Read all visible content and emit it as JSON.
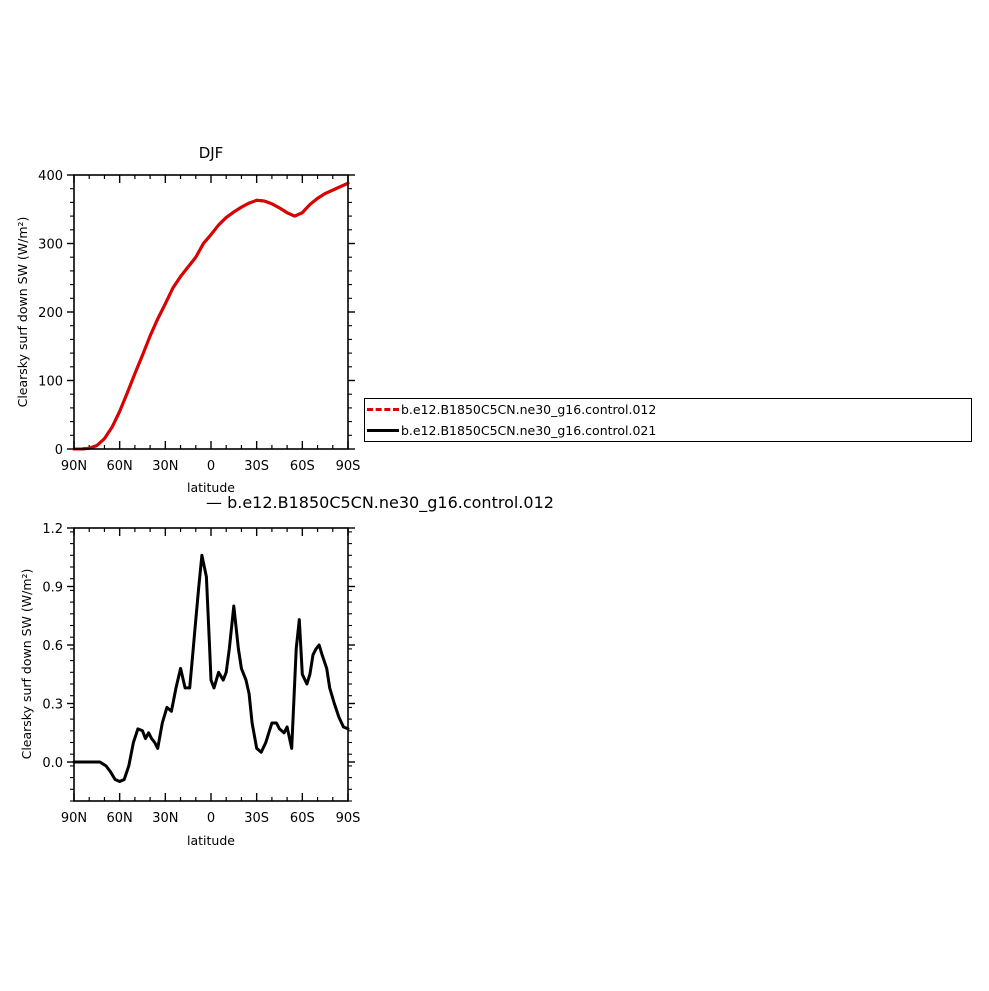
{
  "colors": {
    "control012": "#e00000",
    "control021": "#000000",
    "axes": "#000000"
  },
  "legend": {
    "items": [
      {
        "label": "b.e12.B1850C5CN.ne30_g16.control.012",
        "color": "#e00000",
        "style": "dashed"
      },
      {
        "label": "b.e12.B1850C5CN.ne30_g16.control.021",
        "color": "#000000",
        "style": "solid"
      }
    ]
  },
  "diff_caption": "— b.e12.B1850C5CN.ne30_g16.control.012",
  "chart_data": [
    {
      "type": "line",
      "title": "DJF",
      "xlabel": "latitude",
      "ylabel": "Clearsky surf down SW (W/m²)",
      "xlim": [
        90,
        -90
      ],
      "ylim": [
        0,
        400
      ],
      "xticks": [
        90,
        60,
        30,
        0,
        -30,
        -60,
        -90
      ],
      "xtick_labels": [
        "90N",
        "60N",
        "30N",
        "0",
        "30S",
        "60S",
        "90S"
      ],
      "yticks": [
        0,
        100,
        200,
        300,
        400
      ],
      "ytick_labels": [
        "0",
        "100",
        "200",
        "300",
        "400"
      ],
      "x": [
        90,
        85,
        80,
        75,
        70,
        65,
        60,
        55,
        50,
        45,
        40,
        35,
        30,
        25,
        20,
        15,
        10,
        5,
        0,
        -5,
        -10,
        -15,
        -20,
        -25,
        -30,
        -35,
        -40,
        -45,
        -50,
        -55,
        -60,
        -65,
        -70,
        -75,
        -80,
        -85,
        -90
      ],
      "series": [
        {
          "name": "b.e12.B1850C5CN.ne30_g16.control.012",
          "color": "#e00000",
          "style": "dashed",
          "values": [
            0,
            0,
            1,
            5,
            15,
            32,
            55,
            82,
            110,
            137,
            165,
            190,
            212,
            235,
            252,
            266,
            280,
            300,
            313,
            327,
            338,
            346,
            353,
            359,
            363,
            362,
            358,
            352,
            345,
            340,
            345,
            357,
            366,
            373,
            378,
            383,
            388
          ]
        },
        {
          "name": "b.e12.B1850C5CN.ne30_g16.control.021",
          "color": "#000000",
          "style": "solid",
          "values": [
            0,
            0,
            1,
            5,
            15,
            32,
            55,
            82,
            110,
            137,
            165,
            190,
            212,
            235,
            252,
            266,
            280,
            300,
            313,
            327,
            338,
            346,
            353,
            359,
            363,
            362,
            358,
            352,
            345,
            340,
            345,
            357,
            366,
            373,
            378,
            383,
            388
          ]
        }
      ]
    },
    {
      "type": "line",
      "title": "",
      "xlabel": "latitude",
      "ylabel": "Clearsky surf down SW (W/m²)",
      "xlim": [
        90,
        -90
      ],
      "ylim": [
        -0.2,
        1.2
      ],
      "xticks": [
        90,
        60,
        30,
        0,
        -30,
        -60,
        -90
      ],
      "xtick_labels": [
        "90N",
        "60N",
        "30N",
        "0",
        "30S",
        "60S",
        "90S"
      ],
      "yticks": [
        0.0,
        0.3,
        0.6,
        0.9,
        1.2
      ],
      "ytick_labels": [
        "0.0",
        "0.3",
        "0.6",
        "0.9",
        "1.2"
      ],
      "x": [
        90,
        84,
        78,
        73,
        69,
        66,
        63,
        60,
        57,
        54,
        51,
        48,
        45,
        43,
        41,
        39,
        37,
        35,
        32,
        29,
        26,
        23,
        20,
        17,
        14,
        12,
        10,
        8,
        6,
        3,
        1,
        0,
        -2,
        -5,
        -8,
        -10,
        -12,
        -15,
        -18,
        -20,
        -23,
        -25,
        -27,
        -30,
        -33,
        -36,
        -38,
        -40,
        -43,
        -45,
        -48,
        -50,
        -53,
        -56,
        -58,
        -60,
        -63,
        -65,
        -67,
        -69,
        -71,
        -73,
        -76,
        -78,
        -81,
        -84,
        -87,
        -90
      ],
      "series": [
        {
          "name": "b.e12.B1850C5CN.ne30_g16.control.012",
          "color": "#000000",
          "style": "solid",
          "values": [
            0.0,
            0.0,
            0.0,
            0.0,
            -0.02,
            -0.05,
            -0.09,
            -0.1,
            -0.09,
            -0.02,
            0.1,
            0.17,
            0.16,
            0.12,
            0.15,
            0.12,
            0.1,
            0.07,
            0.2,
            0.28,
            0.26,
            0.38,
            0.48,
            0.38,
            0.38,
            0.55,
            0.73,
            0.9,
            1.06,
            0.95,
            0.6,
            0.42,
            0.38,
            0.46,
            0.42,
            0.46,
            0.58,
            0.8,
            0.58,
            0.48,
            0.42,
            0.35,
            0.2,
            0.07,
            0.05,
            0.1,
            0.15,
            0.2,
            0.2,
            0.17,
            0.15,
            0.18,
            0.07,
            0.58,
            0.73,
            0.45,
            0.4,
            0.45,
            0.55,
            0.58,
            0.6,
            0.55,
            0.48,
            0.38,
            0.3,
            0.23,
            0.18,
            0.17
          ]
        }
      ]
    }
  ]
}
